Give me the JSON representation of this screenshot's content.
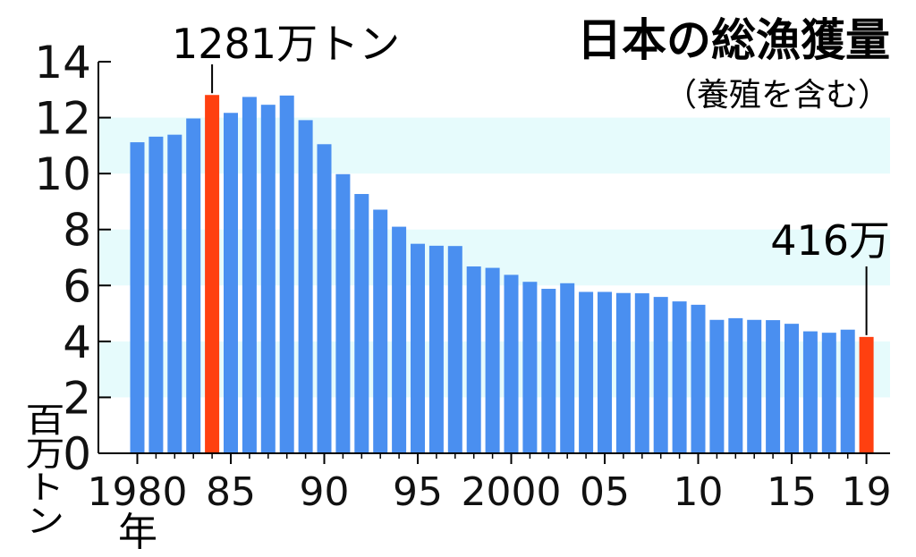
{
  "chart_data": {
    "type": "bar",
    "title": "日本の総漁獲量",
    "subtitle": "（養殖を含む）",
    "ylabel": "百万トン",
    "ylim": [
      0,
      14
    ],
    "yticks": [
      "0",
      "2",
      "4",
      "6",
      "8",
      "10",
      "12",
      "14"
    ],
    "x": [
      1980,
      1981,
      1982,
      1983,
      1984,
      1985,
      1986,
      1987,
      1988,
      1989,
      1990,
      1991,
      1992,
      1993,
      1994,
      1995,
      1996,
      1997,
      1998,
      1999,
      2000,
      2001,
      2002,
      2003,
      2004,
      2005,
      2006,
      2007,
      2008,
      2009,
      2010,
      2011,
      2012,
      2013,
      2014,
      2015,
      2016,
      2017,
      2018,
      2019
    ],
    "values": [
      11.12,
      11.32,
      11.39,
      11.97,
      12.81,
      12.17,
      12.74,
      12.46,
      12.79,
      11.91,
      11.05,
      9.98,
      9.27,
      8.71,
      8.1,
      7.49,
      7.42,
      7.41,
      6.68,
      6.63,
      6.38,
      6.13,
      5.88,
      6.08,
      5.77,
      5.77,
      5.73,
      5.72,
      5.59,
      5.43,
      5.31,
      4.77,
      4.83,
      4.77,
      4.76,
      4.63,
      4.36,
      4.31,
      4.42,
      4.16
    ],
    "xticks": [
      {
        "x": 1980,
        "label": "1980"
      },
      {
        "x": 1985,
        "label": "85"
      },
      {
        "x": 1990,
        "label": "90"
      },
      {
        "x": 1995,
        "label": "95"
      },
      {
        "x": 2000,
        "label": "2000"
      },
      {
        "x": 2005,
        "label": "05"
      },
      {
        "x": 2010,
        "label": "10"
      },
      {
        "x": 2015,
        "label": "15"
      },
      {
        "x": 2019,
        "label": "19"
      }
    ],
    "xlabel": "年",
    "highlight": [
      1984,
      2019
    ],
    "annotations": [
      {
        "x": 1984,
        "text": "1281万トン"
      },
      {
        "x": 2019,
        "text": "416万"
      }
    ],
    "colors": {
      "bar": "#4a8ff0",
      "highlight": "#ff4010",
      "band": "#e6fbfc",
      "axis": "#000000"
    },
    "grid": "alternating-bands"
  }
}
